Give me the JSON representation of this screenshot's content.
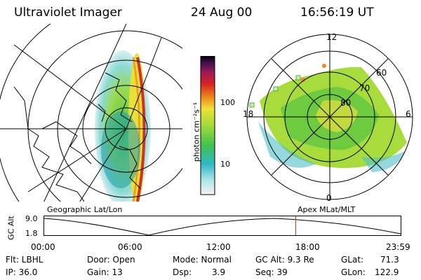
{
  "header": {
    "title": "Ultraviolet Imager",
    "date": "24 Aug 00",
    "time": "16:56:19 UT"
  },
  "left_panel": {
    "label": "Geographic Lat/Lon"
  },
  "right_panel": {
    "label": "Apex MLat/MLT",
    "mlt_labels": {
      "top": "12",
      "left": "18",
      "right": "6",
      "bottom": "0"
    },
    "lat_labels": [
      "60",
      "70",
      "80"
    ]
  },
  "colorbar": {
    "unit_label": "photon cm⁻²s⁻¹",
    "ticks": [
      "100",
      "10"
    ]
  },
  "timeline": {
    "ylabel": "GC Alt",
    "ymax": "9.0",
    "ymin": "1.8",
    "ticks": [
      "00:00",
      "06:00",
      "12:00",
      "18:00",
      "23:59"
    ],
    "marker_time_fraction": 0.7057,
    "marker_color": "#e03020"
  },
  "status": {
    "flt": "Flt: LBHL",
    "ip": "IP: 36.0",
    "door": "Door: Open",
    "gain": "Gain: 13",
    "mode": "Mode: Normal",
    "dsp_label": "Dsp:",
    "dsp_value": "3.9",
    "gcalt": "GC Alt: 9.3 Re",
    "seq": "Seq: 39",
    "glat_label": "GLat:",
    "glat_value": "71.3",
    "glon_label": "GLon:",
    "glon_value": "122.9"
  }
}
